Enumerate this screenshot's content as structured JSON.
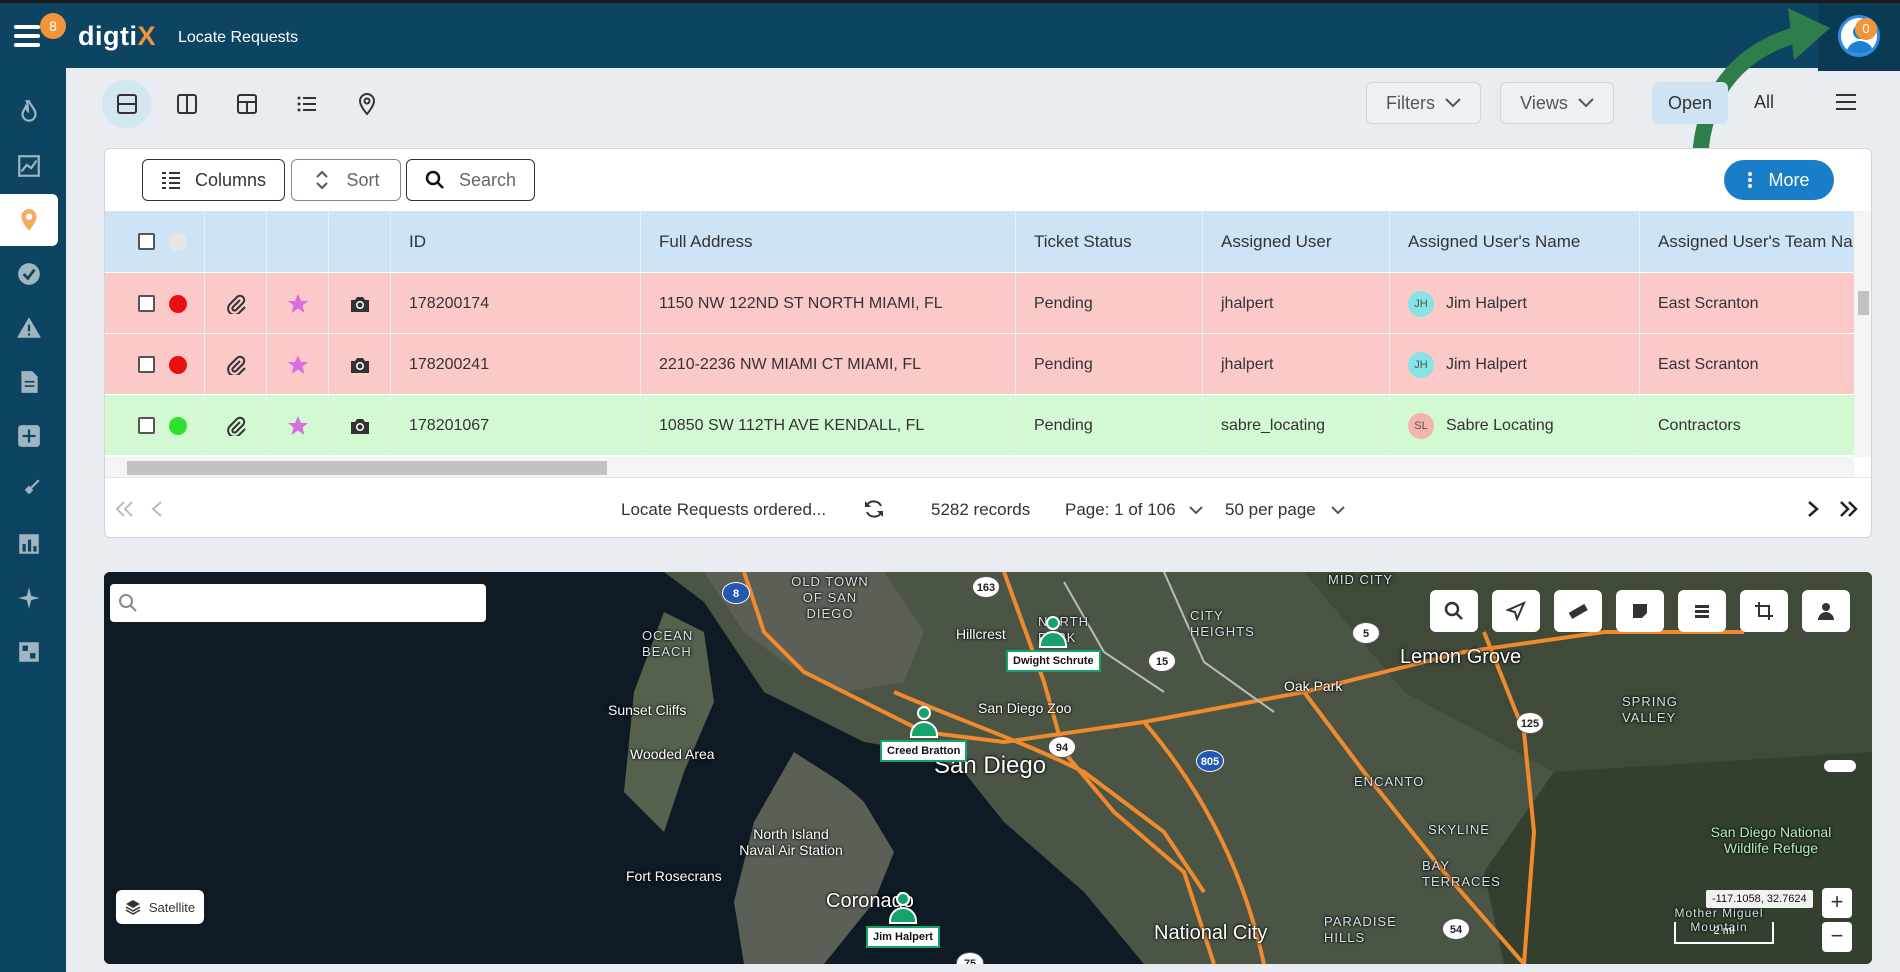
{
  "app": {
    "brand_main": "digti",
    "brand_x": "X",
    "page_title": "Locate Requests",
    "notification_count": "8",
    "user_badge_count": "0"
  },
  "sidebar": {
    "items": [
      "fire-icon",
      "trend-chart-icon",
      "map-pin-icon",
      "check-circle-icon",
      "warning-icon",
      "document-icon",
      "plus-square-icon",
      "shovel-icon",
      "bar-chart-icon",
      "sparkle-icon",
      "layout-icon"
    ],
    "active_index": 2
  },
  "toolbar": {
    "views": [
      "split-horizontal-icon",
      "split-vertical-icon",
      "grid-layout-icon",
      "list-icon",
      "map-pin-icon"
    ],
    "filters_label": "Filters",
    "views_label": "Views",
    "open_label": "Open",
    "all_label": "All"
  },
  "table_tools": {
    "columns_label": "Columns",
    "sort_label": "Sort",
    "search_label": "Search",
    "more_label": "More"
  },
  "table": {
    "columns": [
      "ID",
      "Full Address",
      "Ticket Status",
      "Assigned User",
      "Assigned User's Name",
      "Assigned User's Team Na"
    ],
    "rows": [
      {
        "status_color": "#e81010",
        "row_tone": "red",
        "id": "178200174",
        "address": "1150 NW 122ND ST NORTH MIAMI, FL",
        "ticket_status": "Pending",
        "user": "jhalpert",
        "initials": "JH",
        "initials_bg": "#86e3e6",
        "name": "Jim Halpert",
        "team": "East Scranton"
      },
      {
        "status_color": "#e81010",
        "row_tone": "red",
        "id": "178200241",
        "address": "2210-2236 NW MIAMI CT MIAMI, FL",
        "ticket_status": "Pending",
        "user": "jhalpert",
        "initials": "JH",
        "initials_bg": "#86e3e6",
        "name": "Jim Halpert",
        "team": "East Scranton"
      },
      {
        "status_color": "#2fe02f",
        "row_tone": "green",
        "id": "178201067",
        "address": "10850 SW 112TH AVE KENDALL, FL",
        "ticket_status": "Pending",
        "user": "sabre_locating",
        "initials": "SL",
        "initials_bg": "#f4b4ae",
        "name": "Sabre Locating",
        "team": "Contractors"
      }
    ]
  },
  "pager": {
    "ordered_label": "Locate Requests ordered...",
    "records": "5282 records",
    "page": "Page: 1 of 106",
    "per_page": "50 per page"
  },
  "map": {
    "satellite_label": "Satellite",
    "coord_readout": "-117.1058, 32.7624",
    "scale_label": "2 mi",
    "pins": [
      "Dwight Schrute",
      "Creed Bratton",
      "Jim Halpert"
    ],
    "places": [
      "San Diego",
      "National City",
      "Lemon Grove",
      "Hillcrest",
      "San Diego Zoo",
      "Sunset Cliffs",
      "Wooded Area",
      "Fort Rosecrans",
      "North Island Naval Air Station",
      "Coronado",
      "Oak Park",
      "ENCANTO",
      "SKYLINE",
      "BAY TERRACES",
      "PARADISE HILLS",
      "SPRING VALLEY",
      "CITY HEIGHTS",
      "NORTH PARK",
      "OCEAN BEACH",
      "OLD TOWN OF SAN DIEGO",
      "MID CITY",
      "San Diego National Wildlife Refuge",
      "Mother Miguel Mountain"
    ],
    "highways": [
      "8",
      "163",
      "15",
      "94",
      "805",
      "125",
      "54",
      "5",
      "75"
    ]
  }
}
